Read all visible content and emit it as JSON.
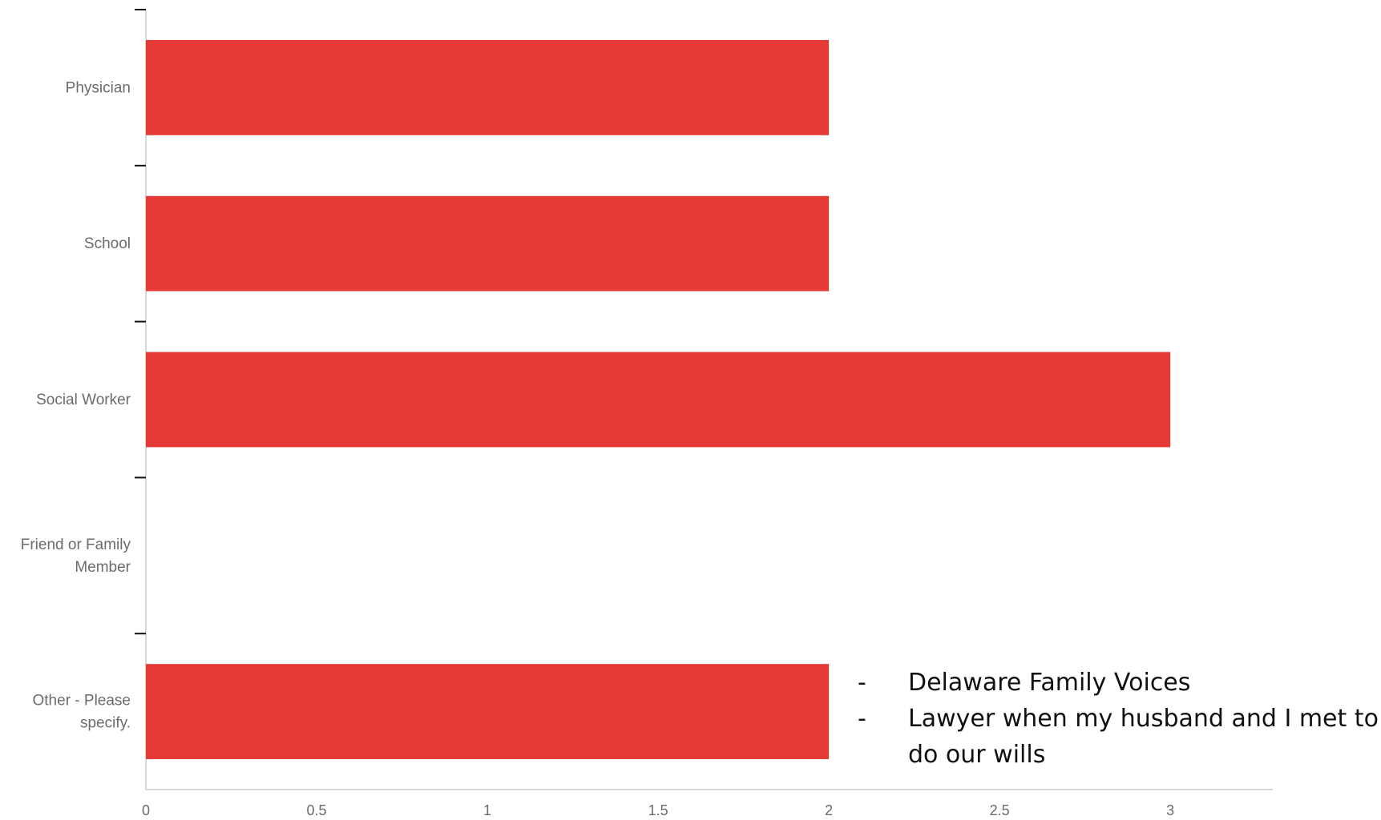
{
  "chart_data": {
    "type": "bar",
    "orientation": "horizontal",
    "categories": [
      "Physician",
      "School",
      "Social Worker",
      "Friend or Family Member",
      "Other - Please specify."
    ],
    "category_lines": [
      [
        "Physician"
      ],
      [
        "School"
      ],
      [
        "Social Worker"
      ],
      [
        "Friend or Family",
        "Member"
      ],
      [
        "Other - Please",
        "specify."
      ]
    ],
    "values": [
      2,
      2,
      3,
      0,
      2
    ],
    "xlim": [
      0,
      3.3
    ],
    "xticks": [
      0,
      0.5,
      1,
      1.5,
      2,
      2.5,
      3
    ],
    "xtick_labels": [
      "0",
      "0.5",
      "1",
      "1.5",
      "2",
      "2.5",
      "3"
    ],
    "grid": false,
    "title": "",
    "xlabel": "",
    "ylabel": "",
    "bar_color": "#e53935",
    "axis_color": "#cccccc",
    "label_color": "#6b6b6b"
  },
  "annotation": {
    "items": [
      "Delaware Family Voices",
      "Lawyer when my husband and I met to do our wills"
    ]
  }
}
